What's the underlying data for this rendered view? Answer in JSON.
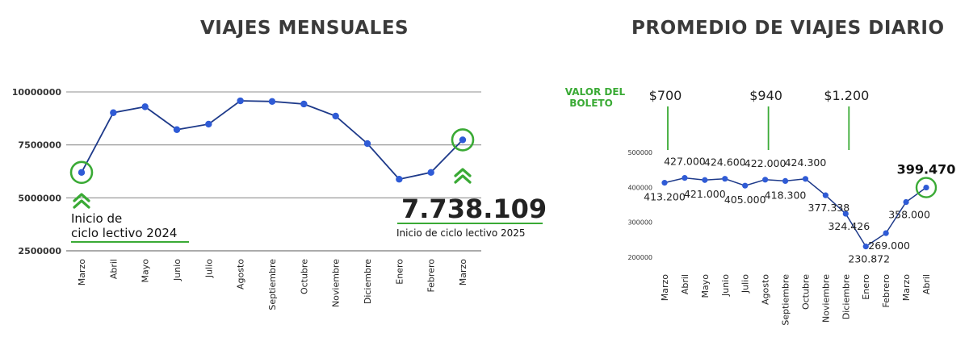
{
  "chart_data": [
    {
      "type": "line",
      "title": "VIAJES MENSUALES",
      "categories": [
        "Marzo",
        "Abril",
        "Mayo",
        "Junio",
        "Julio",
        "Agosto",
        "Septiembre",
        "Octubre",
        "Noviembre",
        "Diciembre",
        "Enero",
        "Febrero",
        "Marzo"
      ],
      "series": [
        {
          "values": [
            6200000,
            9020000,
            9300000,
            8220000,
            8480000,
            9580000,
            9550000,
            9430000,
            8860000,
            7560000,
            5880000,
            6200000,
            7738109
          ]
        }
      ],
      "yticks": [
        "10000000",
        "7500000",
        "5000000",
        "2500000"
      ],
      "ylim": [
        2500000,
        10000000
      ],
      "grid": true,
      "highlight_value": "7.738.109",
      "annotations": [
        {
          "text": "Inicio de\nciclo lectivo 2024"
        },
        {
          "text": "Inicio de ciclo lectivo 2025"
        }
      ],
      "colors": {
        "line": "#1e3a8a",
        "marker": "#2f5bd6",
        "accent": "#3aaa35",
        "grid": "#8f8f8f"
      }
    },
    {
      "type": "line",
      "title": "PROMEDIO DE VIAJES DIARIO",
      "categories": [
        "Marzo",
        "Abril",
        "Mayo",
        "Junio",
        "Julio",
        "Agosto",
        "Septiembre",
        "Octubre",
        "Noviembre",
        "Diciembre",
        "Enero",
        "Febrero",
        "Marzo",
        "Abril"
      ],
      "series": [
        {
          "values": [
            413200,
            427000,
            421000,
            424600,
            405000,
            422000,
            418300,
            424300,
            377338,
            324426,
            230872,
            269000,
            358000,
            399470
          ]
        }
      ],
      "data_labels": [
        "413.200",
        "427.000",
        "421.000",
        "424.600",
        "405.000",
        "422.000",
        "418.300",
        "424.300",
        "377.338",
        "324.426",
        "230.872",
        "269.000",
        "358.000",
        "399.470"
      ],
      "yticks": [
        "500000",
        "400000",
        "300000",
        "200000"
      ],
      "ylim": [
        200000,
        500000
      ],
      "grid": false,
      "fare_label": "VALOR DEL\nBOLETO",
      "fares": [
        "$700",
        "$940",
        "$1.200"
      ],
      "colors": {
        "line": "#1e3a8a",
        "marker": "#2f5bd6",
        "accent": "#3aaa35"
      }
    }
  ]
}
